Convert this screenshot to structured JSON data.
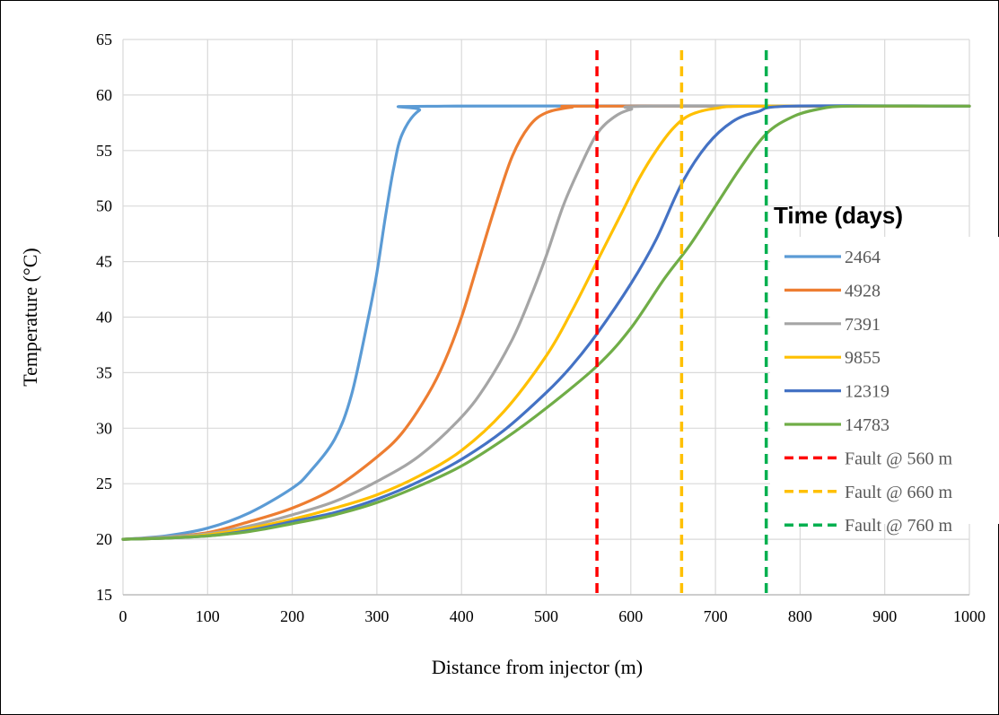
{
  "chart_data": {
    "type": "line",
    "title": "",
    "xlabel": "Distance from injector (m)",
    "ylabel": "Temperature (°C)",
    "xlim": [
      0,
      1000
    ],
    "ylim": [
      15,
      65
    ],
    "x_ticks": [
      0,
      100,
      200,
      300,
      400,
      500,
      600,
      700,
      800,
      900,
      1000
    ],
    "y_ticks": [
      15,
      20,
      25,
      30,
      35,
      40,
      45,
      50,
      55,
      60,
      65
    ],
    "grid": true,
    "legend_title": "Time (days)",
    "legend_position": "right",
    "series": [
      {
        "name": "2464",
        "color": "#5B9BD5",
        "points": [
          [
            0,
            20
          ],
          [
            50,
            20.3
          ],
          [
            100,
            21
          ],
          [
            150,
            22.4
          ],
          [
            200,
            24.6
          ],
          [
            220,
            26
          ],
          [
            250,
            29
          ],
          [
            270,
            33
          ],
          [
            290,
            40
          ],
          [
            300,
            44
          ],
          [
            310,
            49
          ],
          [
            320,
            53.5
          ],
          [
            330,
            56.5
          ],
          [
            350,
            58.6
          ],
          [
            380,
            59
          ],
          [
            1000,
            59
          ]
        ]
      },
      {
        "name": "4928",
        "color": "#ED7D31",
        "points": [
          [
            0,
            20
          ],
          [
            50,
            20.2
          ],
          [
            100,
            20.6
          ],
          [
            150,
            21.6
          ],
          [
            200,
            22.8
          ],
          [
            250,
            24.6
          ],
          [
            300,
            27.4
          ],
          [
            330,
            29.6
          ],
          [
            360,
            33
          ],
          [
            380,
            36
          ],
          [
            400,
            40
          ],
          [
            420,
            45
          ],
          [
            440,
            50
          ],
          [
            460,
            54.5
          ],
          [
            480,
            57.2
          ],
          [
            500,
            58.4
          ],
          [
            530,
            58.9
          ],
          [
            560,
            59
          ],
          [
            1000,
            59
          ]
        ]
      },
      {
        "name": "7391",
        "color": "#A5A5A5",
        "points": [
          [
            0,
            20
          ],
          [
            50,
            20.2
          ],
          [
            100,
            20.5
          ],
          [
            150,
            21.2
          ],
          [
            200,
            22.2
          ],
          [
            250,
            23.4
          ],
          [
            300,
            25.2
          ],
          [
            350,
            27.5
          ],
          [
            400,
            31
          ],
          [
            430,
            34
          ],
          [
            460,
            38
          ],
          [
            480,
            41.5
          ],
          [
            500,
            45.5
          ],
          [
            520,
            50
          ],
          [
            540,
            53.5
          ],
          [
            560,
            56.5
          ],
          [
            580,
            58
          ],
          [
            600,
            58.7
          ],
          [
            630,
            59
          ],
          [
            1000,
            59
          ]
        ]
      },
      {
        "name": "9855",
        "color": "#FFC000",
        "points": [
          [
            0,
            20
          ],
          [
            50,
            20.1
          ],
          [
            100,
            20.4
          ],
          [
            150,
            21
          ],
          [
            200,
            21.8
          ],
          [
            250,
            22.8
          ],
          [
            300,
            24
          ],
          [
            350,
            25.7
          ],
          [
            400,
            28
          ],
          [
            450,
            31.5
          ],
          [
            500,
            36.5
          ],
          [
            530,
            40.5
          ],
          [
            560,
            45
          ],
          [
            590,
            49.5
          ],
          [
            610,
            52.5
          ],
          [
            630,
            55
          ],
          [
            650,
            57
          ],
          [
            670,
            58.2
          ],
          [
            700,
            58.8
          ],
          [
            750,
            59
          ],
          [
            1000,
            59
          ]
        ]
      },
      {
        "name": "12319",
        "color": "#4472C4",
        "points": [
          [
            0,
            20
          ],
          [
            50,
            20.1
          ],
          [
            100,
            20.3
          ],
          [
            150,
            20.8
          ],
          [
            200,
            21.6
          ],
          [
            250,
            22.4
          ],
          [
            300,
            23.6
          ],
          [
            350,
            25.2
          ],
          [
            400,
            27.2
          ],
          [
            450,
            29.8
          ],
          [
            500,
            33.2
          ],
          [
            530,
            35.6
          ],
          [
            560,
            38.5
          ],
          [
            600,
            43
          ],
          [
            630,
            47
          ],
          [
            660,
            52
          ],
          [
            690,
            55.5
          ],
          [
            720,
            57.6
          ],
          [
            750,
            58.5
          ],
          [
            790,
            59
          ],
          [
            1000,
            59
          ]
        ]
      },
      {
        "name": "14783",
        "color": "#70AD47",
        "points": [
          [
            0,
            20
          ],
          [
            50,
            20.1
          ],
          [
            100,
            20.3
          ],
          [
            150,
            20.7
          ],
          [
            200,
            21.4
          ],
          [
            250,
            22.2
          ],
          [
            300,
            23.3
          ],
          [
            350,
            24.8
          ],
          [
            400,
            26.6
          ],
          [
            450,
            29
          ],
          [
            500,
            31.8
          ],
          [
            560,
            35.6
          ],
          [
            600,
            39
          ],
          [
            640,
            43.5
          ],
          [
            670,
            46.5
          ],
          [
            700,
            50
          ],
          [
            730,
            53.5
          ],
          [
            760,
            56.5
          ],
          [
            790,
            58
          ],
          [
            820,
            58.7
          ],
          [
            860,
            59
          ],
          [
            1000,
            59
          ]
        ]
      }
    ],
    "faults": [
      {
        "name": "Fault @ 560 m",
        "x": 560,
        "color": "#FF0000"
      },
      {
        "name": "Fault @ 660 m",
        "x": 660,
        "color": "#FFC000"
      },
      {
        "name": "Fault @ 760 m",
        "x": 760,
        "color": "#00B050"
      }
    ]
  }
}
